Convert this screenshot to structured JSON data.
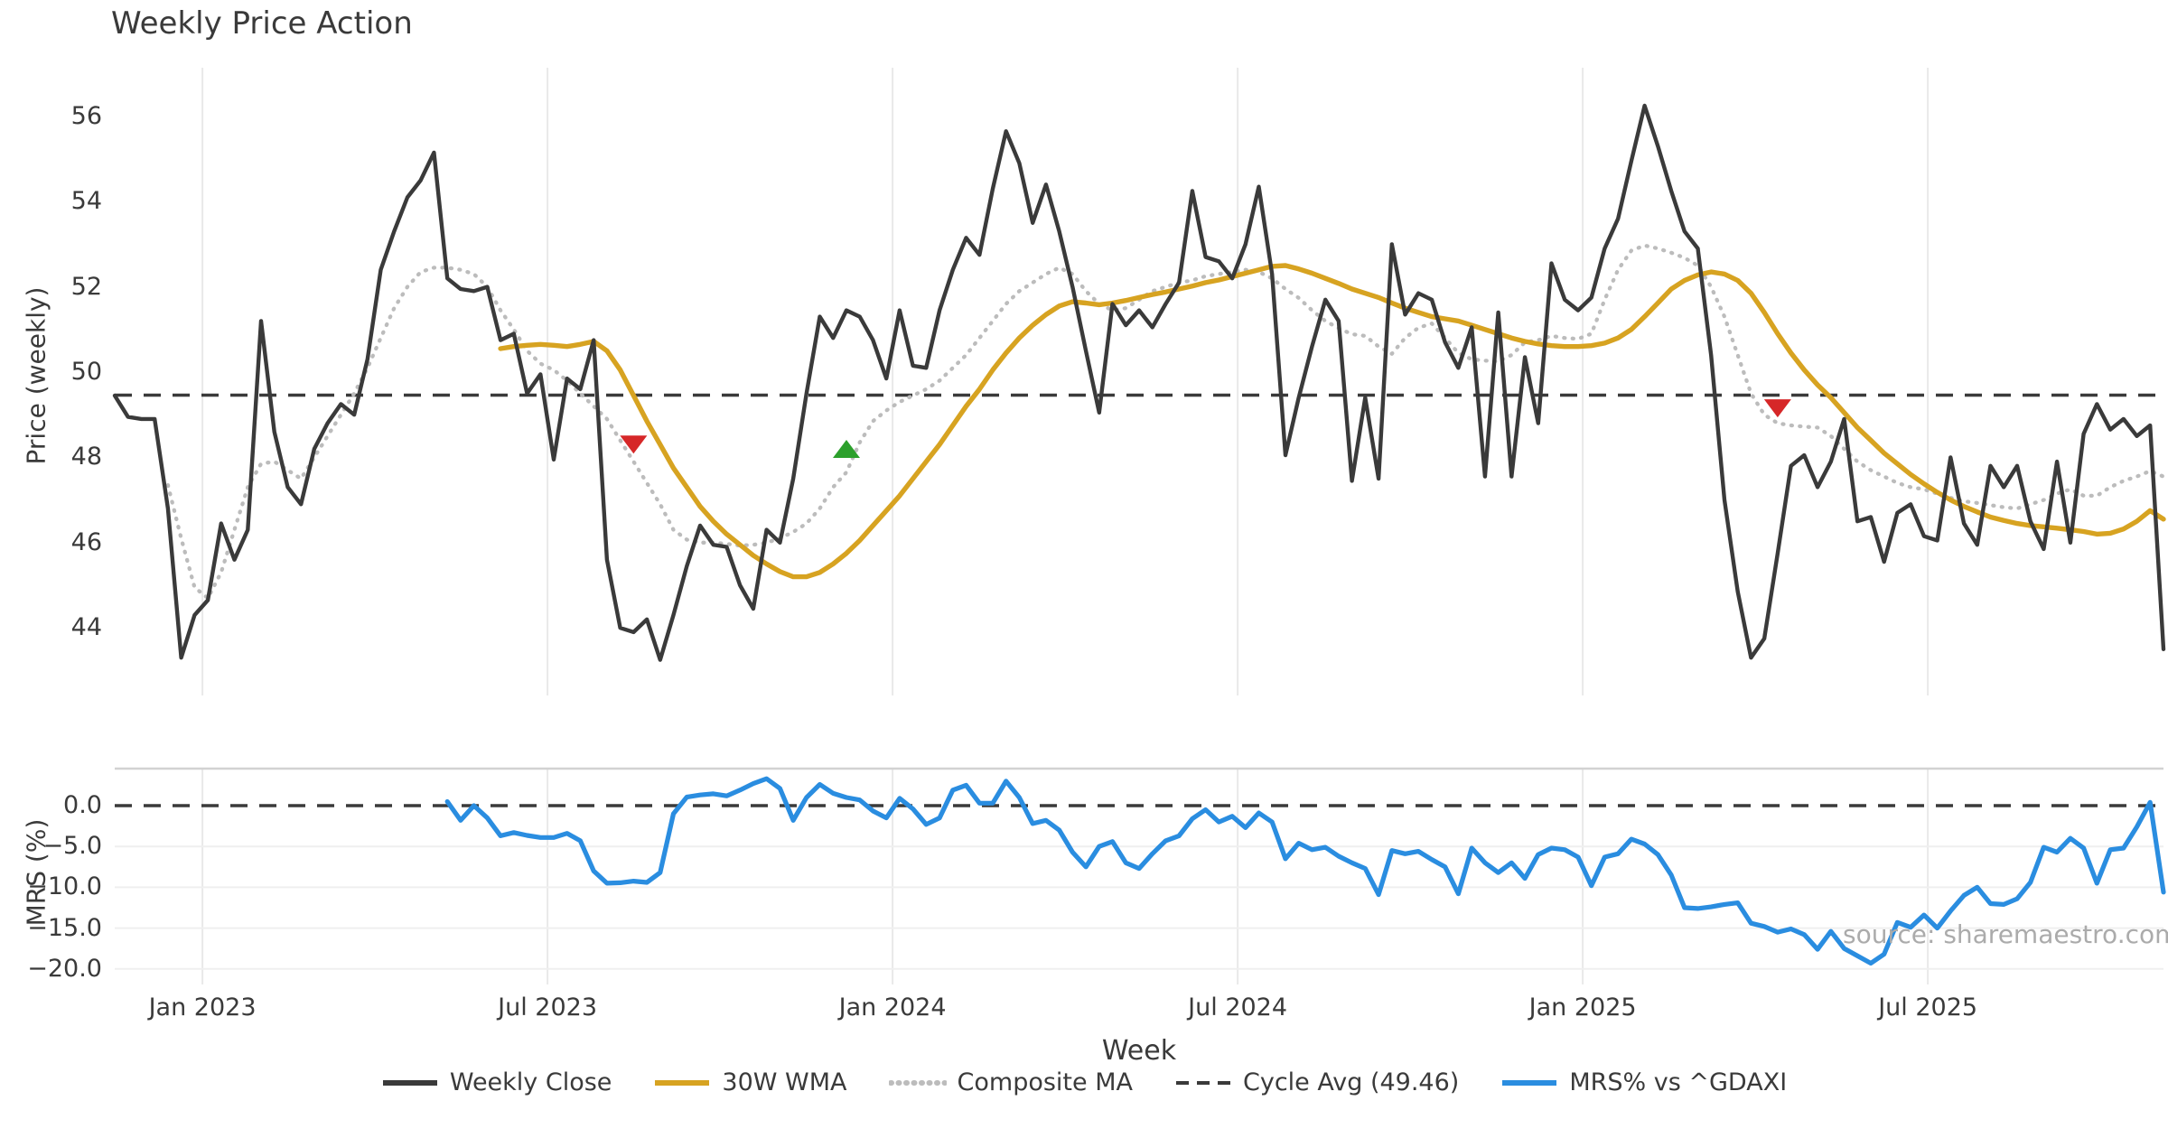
{
  "title": "Weekly Price Action",
  "xlabel": "Week",
  "source_note": "source: sharemaestro.com",
  "legend": [
    {
      "label": "Weekly Close",
      "color": "#3a3a3a",
      "style": "solid"
    },
    {
      "label": "30W WMA",
      "color": "#d7a321",
      "style": "solid"
    },
    {
      "label": "Composite MA",
      "color": "#bcbcbc",
      "style": "dotted"
    },
    {
      "label": "Cycle Avg (49.46)",
      "color": "#3a3a3a",
      "style": "dashed"
    },
    {
      "label": "MRS% vs ^GDAXI",
      "color": "#2a8de0",
      "style": "solid"
    }
  ],
  "chart_data": [
    {
      "type": "line",
      "panel": "price",
      "ylabel": "Price (weekly)",
      "grid": "vertical-only",
      "ylim": [
        42.2,
        57.2
      ],
      "yticks": [
        {
          "v": 56,
          "label": "56"
        },
        {
          "v": 54,
          "label": "54"
        },
        {
          "v": 52,
          "label": "52"
        },
        {
          "v": 50,
          "label": "50"
        },
        {
          "v": 48,
          "label": "48"
        },
        {
          "v": 46,
          "label": "46"
        },
        {
          "v": 44,
          "label": "44"
        }
      ],
      "xticks": [
        {
          "week": 6.59,
          "label": "Jan 2023"
        },
        {
          "week": 32.53,
          "label": "Jul 2023"
        },
        {
          "week": 58.47,
          "label": "Jan 2024"
        },
        {
          "week": 84.41,
          "label": "Jul 2024"
        },
        {
          "week": 110.35,
          "label": "Jan 2025"
        },
        {
          "week": 136.29,
          "label": "Jul 2025"
        }
      ],
      "cycle_avg": 49.46,
      "series": [
        {
          "name": "Weekly Close",
          "color": "#3a3a3a",
          "style": "solid",
          "width": 4.4,
          "start_week": 0,
          "values": [
            49.45,
            48.95,
            48.9,
            48.9,
            46.8,
            43.3,
            44.3,
            44.65,
            46.45,
            45.6,
            46.3,
            51.2,
            48.6,
            47.3,
            46.9,
            48.2,
            48.8,
            49.25,
            49.0,
            50.3,
            52.4,
            53.3,
            54.1,
            54.5,
            55.15,
            52.2,
            51.95,
            51.9,
            52.0,
            50.75,
            50.9,
            49.5,
            49.95,
            47.95,
            49.85,
            49.6,
            50.75,
            45.6,
            44.0,
            43.9,
            44.2,
            43.25,
            44.3,
            45.45,
            46.4,
            45.95,
            45.9,
            45.0,
            44.45,
            46.3,
            46.0,
            47.5,
            49.5,
            51.3,
            50.8,
            51.45,
            51.3,
            50.75,
            49.85,
            51.45,
            50.15,
            50.1,
            51.45,
            52.4,
            53.15,
            52.75,
            54.3,
            55.65,
            54.9,
            53.5,
            54.4,
            53.3,
            52.0,
            50.5,
            49.05,
            51.6,
            51.1,
            51.45,
            51.05,
            51.6,
            52.1,
            54.25,
            52.7,
            52.6,
            52.2,
            53.0,
            54.35,
            52.3,
            48.05,
            49.4,
            50.6,
            51.7,
            51.2,
            47.45,
            49.4,
            47.5,
            53.0,
            51.35,
            51.85,
            51.7,
            50.7,
            50.1,
            51.05,
            47.55,
            51.4,
            47.55,
            50.35,
            48.8,
            52.55,
            51.7,
            51.45,
            51.75,
            52.9,
            53.6,
            54.95,
            56.25,
            55.3,
            54.25,
            53.3,
            52.9,
            50.4,
            47.0,
            44.85,
            43.3,
            43.75,
            45.75,
            47.8,
            48.05,
            47.3,
            47.9,
            48.9,
            46.5,
            46.6,
            45.55,
            46.7,
            46.9,
            46.15,
            46.05,
            48.0,
            46.45,
            45.95,
            47.8,
            47.3,
            47.8,
            46.5,
            45.85,
            47.9,
            46.0,
            48.55,
            49.25,
            48.65,
            48.9,
            48.5,
            48.75,
            43.5
          ]
        },
        {
          "name": "30W WMA",
          "color": "#d7a321",
          "style": "solid",
          "width": 5.4,
          "start_week": 29,
          "values": [
            50.55,
            50.6,
            50.63,
            50.65,
            50.63,
            50.6,
            50.65,
            50.72,
            50.5,
            50.05,
            49.45,
            48.85,
            48.3,
            47.75,
            47.3,
            46.85,
            46.5,
            46.2,
            45.95,
            45.7,
            45.5,
            45.32,
            45.2,
            45.2,
            45.3,
            45.5,
            45.75,
            46.05,
            46.4,
            46.75,
            47.1,
            47.5,
            47.9,
            48.3,
            48.75,
            49.2,
            49.6,
            50.05,
            50.45,
            50.8,
            51.1,
            51.35,
            51.55,
            51.65,
            51.62,
            51.58,
            51.62,
            51.68,
            51.75,
            51.82,
            51.88,
            51.95,
            52.02,
            52.1,
            52.16,
            52.24,
            52.32,
            52.4,
            52.48,
            52.5,
            52.42,
            52.32,
            52.2,
            52.08,
            51.95,
            51.85,
            51.75,
            51.62,
            51.5,
            51.4,
            51.3,
            51.25,
            51.2,
            51.1,
            51.0,
            50.9,
            50.8,
            50.72,
            50.66,
            50.62,
            50.6,
            50.6,
            50.62,
            50.68,
            50.8,
            51.0,
            51.3,
            51.62,
            51.95,
            52.15,
            52.28,
            52.35,
            52.3,
            52.15,
            51.85,
            51.4,
            50.9,
            50.45,
            50.05,
            49.7,
            49.4,
            49.05,
            48.7,
            48.4,
            48.1,
            47.85,
            47.6,
            47.38,
            47.18,
            47.0,
            46.85,
            46.72,
            46.6,
            46.52,
            46.45,
            46.4,
            46.37,
            46.34,
            46.3,
            46.26,
            46.2,
            46.22,
            46.32,
            46.5,
            46.75,
            46.55
          ]
        },
        {
          "name": "Composite MA",
          "color": "#bcbcbc",
          "style": "dotted",
          "width": 4.3,
          "start_week": 4,
          "values": [
            47.35,
            46.1,
            44.95,
            44.7,
            45.3,
            46.3,
            47.3,
            47.85,
            47.9,
            47.7,
            47.5,
            48.0,
            48.5,
            49.0,
            49.5,
            50.1,
            50.8,
            51.5,
            52.0,
            52.35,
            52.45,
            52.45,
            52.4,
            52.3,
            52.0,
            51.45,
            51.0,
            50.5,
            50.2,
            50.05,
            49.8,
            49.5,
            49.2,
            48.9,
            48.4,
            47.9,
            47.4,
            46.9,
            46.3,
            46.07,
            46.0,
            46.0,
            45.97,
            45.93,
            45.95,
            46.0,
            46.1,
            46.25,
            46.45,
            46.8,
            47.3,
            47.65,
            48.35,
            48.85,
            49.1,
            49.3,
            49.45,
            49.6,
            49.8,
            50.1,
            50.4,
            50.8,
            51.2,
            51.6,
            51.9,
            52.1,
            52.3,
            52.45,
            52.3,
            51.9,
            51.6,
            51.45,
            51.5,
            51.7,
            51.9,
            52.0,
            52.1,
            52.15,
            52.25,
            52.3,
            52.35,
            52.4,
            52.35,
            52.2,
            51.95,
            51.74,
            51.45,
            51.2,
            51.03,
            50.89,
            50.85,
            50.6,
            50.43,
            50.8,
            51.04,
            51.14,
            50.8,
            50.45,
            50.3,
            50.27,
            50.25,
            50.4,
            50.7,
            50.75,
            50.85,
            50.8,
            50.78,
            50.9,
            51.7,
            52.4,
            52.85,
            52.97,
            52.9,
            52.8,
            52.68,
            52.5,
            52.0,
            51.3,
            50.4,
            49.5,
            49.0,
            48.8,
            48.75,
            48.72,
            48.7,
            48.5,
            48.2,
            47.9,
            47.7,
            47.55,
            47.4,
            47.3,
            47.25,
            47.15,
            47.05,
            46.97,
            46.93,
            46.88,
            46.83,
            46.8,
            46.9,
            47.0,
            47.15,
            47.25,
            47.1,
            47.1,
            47.3,
            47.45,
            47.55,
            47.68,
            47.55
          ]
        }
      ],
      "signals": [
        {
          "week": 39,
          "value": 48.3,
          "direction": "down",
          "color": "#d62728"
        },
        {
          "week": 55,
          "value": 48.2,
          "direction": "up",
          "color": "#2ca02c"
        },
        {
          "week": 125,
          "value": 49.15,
          "direction": "down",
          "color": "#d62728"
        }
      ]
    },
    {
      "type": "line",
      "panel": "mrs",
      "ylabel": "MRS (%)",
      "grid": "both",
      "ylim": [
        -21.5,
        4.5
      ],
      "zero_line": 0.0,
      "yticks": [
        {
          "v": 0,
          "label": "0.0"
        },
        {
          "v": -5,
          "label": "−5.0"
        },
        {
          "v": -10,
          "label": "−10.0"
        },
        {
          "v": -15,
          "label": "−15.0"
        },
        {
          "v": -20,
          "label": "−20.0"
        }
      ],
      "series": [
        {
          "name": "MRS% vs ^GDAXI",
          "color": "#2a8de0",
          "style": "solid",
          "width": 5.2,
          "start_week": 25,
          "values": [
            0.5,
            -1.8,
            0.0,
            -1.5,
            -3.7,
            -3.3,
            -3.65,
            -3.9,
            -3.9,
            -3.4,
            -4.3,
            -8.0,
            -9.5,
            -9.45,
            -9.25,
            -9.4,
            -8.2,
            -1.0,
            1.05,
            1.3,
            1.45,
            1.2,
            1.9,
            2.7,
            3.3,
            2.1,
            -1.8,
            1.0,
            2.6,
            1.5,
            1.0,
            0.7,
            -0.65,
            -1.5,
            0.9,
            -0.4,
            -2.3,
            -1.5,
            1.9,
            2.5,
            0.3,
            0.3,
            3.0,
            1.0,
            -2.2,
            -1.8,
            -3.0,
            -5.7,
            -7.5,
            -5.0,
            -4.4,
            -7.0,
            -7.7,
            -5.9,
            -4.3,
            -3.7,
            -1.6,
            -0.5,
            -2.0,
            -1.3,
            -2.7,
            -0.9,
            -2.0,
            -6.5,
            -4.6,
            -5.4,
            -5.1,
            -6.2,
            -7.0,
            -7.7,
            -10.9,
            -5.5,
            -5.9,
            -5.6,
            -6.6,
            -7.5,
            -10.8,
            -5.2,
            -7.0,
            -8.2,
            -7.0,
            -8.9,
            -6.0,
            -5.2,
            -5.4,
            -6.3,
            -9.8,
            -6.3,
            -5.9,
            -4.1,
            -4.7,
            -6.0,
            -8.5,
            -12.5,
            -12.6,
            -12.4,
            -12.1,
            -11.9,
            -14.4,
            -14.8,
            -15.5,
            -15.1,
            -15.8,
            -17.6,
            -15.4,
            -17.5,
            -18.4,
            -19.3,
            -18.2,
            -14.3,
            -14.9,
            -13.4,
            -15.0,
            -12.9,
            -11.0,
            -10.0,
            -12.0,
            -12.1,
            -11.4,
            -9.4,
            -5.1,
            -5.7,
            -4.0,
            -5.2,
            -9.5,
            -5.4,
            -5.2,
            -2.6,
            0.4,
            -10.6
          ]
        }
      ]
    }
  ]
}
